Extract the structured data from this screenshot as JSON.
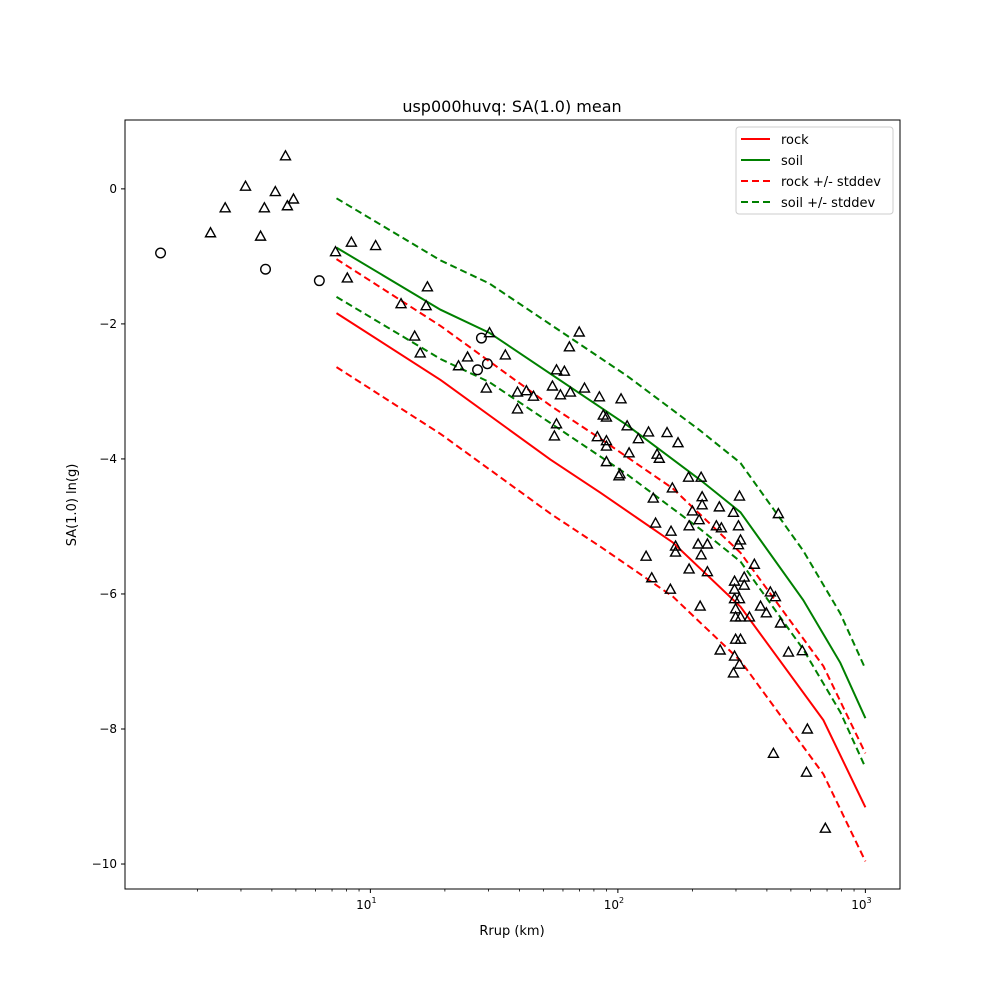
{
  "chart_data": {
    "type": "scatter",
    "title": "usp000huvq: SA(1.0) mean",
    "xlabel": "Rrup (km)",
    "ylabel": "SA(1.0) ln(g)",
    "xscale": "log",
    "xlim": [
      1.02,
      1380
    ],
    "ylim": [
      -10.37,
      1.02
    ],
    "grid": false,
    "legend_position": "top-right",
    "xticks": [
      {
        "value": 10,
        "base": "10",
        "exp": "1"
      },
      {
        "value": 100,
        "base": "10",
        "exp": "2"
      },
      {
        "value": 1000,
        "base": "10",
        "exp": "3"
      }
    ],
    "yticks": [
      {
        "value": 0,
        "label": "0"
      },
      {
        "value": -2,
        "label": "−2"
      },
      {
        "value": -4,
        "label": "−4"
      },
      {
        "value": -6,
        "label": "−6"
      },
      {
        "value": -8,
        "label": "−8"
      },
      {
        "value": -10,
        "label": "−10"
      }
    ],
    "colors": {
      "rock": "#ff0000",
      "soil": "#008000",
      "marker": "#000000"
    },
    "legend": [
      {
        "label": "rock",
        "series": "rock",
        "style": "solid"
      },
      {
        "label": "soil",
        "series": "soil",
        "style": "solid"
      },
      {
        "label": "rock +/- stddev",
        "series": "rock",
        "style": "dashed"
      },
      {
        "label": "soil +/- stddev",
        "series": "soil",
        "style": "dashed"
      }
    ],
    "lines": {
      "rock": {
        "stddev": 0.8,
        "x": [
          7.3,
          19.2,
          53.4,
          85,
          167,
          313,
          677,
          1000
        ],
        "y": [
          -1.84,
          -2.83,
          -4.01,
          -4.5,
          -5.24,
          -6.19,
          -7.87,
          -9.16
        ]
      },
      "soil": {
        "stddev": 0.73,
        "x": [
          7.3,
          19.2,
          30.2,
          109,
          215,
          313,
          561,
          792,
          1000
        ],
        "y": [
          -0.87,
          -1.79,
          -2.13,
          -3.5,
          -4.31,
          -4.79,
          -6.09,
          -7.02,
          -7.84
        ]
      }
    },
    "circles": [
      [
        1.42,
        -0.95
      ],
      [
        3.77,
        -1.19
      ],
      [
        6.22,
        -1.36
      ],
      [
        28.1,
        -2.21
      ],
      [
        29.7,
        -2.59
      ],
      [
        27.1,
        -2.68
      ]
    ],
    "triangles": [
      [
        4.54,
        0.49
      ],
      [
        3.13,
        0.04
      ],
      [
        4.13,
        -0.04
      ],
      [
        4.89,
        -0.15
      ],
      [
        2.59,
        -0.28
      ],
      [
        3.73,
        -0.28
      ],
      [
        4.62,
        -0.25
      ],
      [
        2.26,
        -0.65
      ],
      [
        3.6,
        -0.7
      ],
      [
        8.38,
        -0.79
      ],
      [
        10.5,
        -0.84
      ],
      [
        7.23,
        -0.93
      ],
      [
        8.07,
        -1.32
      ],
      [
        17.0,
        -1.45
      ],
      [
        13.3,
        -1.7
      ],
      [
        16.8,
        -1.73
      ],
      [
        15.1,
        -2.18
      ],
      [
        15.9,
        -2.43
      ],
      [
        22.7,
        -2.62
      ],
      [
        30.3,
        -2.13
      ],
      [
        69.8,
        -2.12
      ],
      [
        63.7,
        -2.34
      ],
      [
        24.7,
        -2.49
      ],
      [
        35.1,
        -2.46
      ],
      [
        56.5,
        -2.68
      ],
      [
        60.8,
        -2.7
      ],
      [
        29.4,
        -2.95
      ],
      [
        39.3,
        -3.01
      ],
      [
        42.7,
        -2.99
      ],
      [
        45.6,
        -3.07
      ],
      [
        39.3,
        -3.26
      ],
      [
        54.4,
        -2.92
      ],
      [
        58.6,
        -3.05
      ],
      [
        64.3,
        -3.01
      ],
      [
        73.3,
        -2.95
      ],
      [
        84.2,
        -3.08
      ],
      [
        103,
        -3.11
      ],
      [
        87.3,
        -3.35
      ],
      [
        89.9,
        -3.38
      ],
      [
        109,
        -3.51
      ],
      [
        56.5,
        -3.48
      ],
      [
        55.4,
        -3.66
      ],
      [
        82.6,
        -3.67
      ],
      [
        89.9,
        -3.73
      ],
      [
        89.9,
        -3.81
      ],
      [
        121,
        -3.7
      ],
      [
        133,
        -3.6
      ],
      [
        158,
        -3.61
      ],
      [
        175,
        -3.76
      ],
      [
        111,
        -3.91
      ],
      [
        144,
        -3.93
      ],
      [
        147,
        -3.99
      ],
      [
        89.9,
        -4.04
      ],
      [
        102,
        -4.22
      ],
      [
        101,
        -4.25
      ],
      [
        193,
        -4.27
      ],
      [
        217,
        -4.27
      ],
      [
        166,
        -4.43
      ],
      [
        139,
        -4.58
      ],
      [
        219,
        -4.56
      ],
      [
        310,
        -4.55
      ],
      [
        445,
        -4.81
      ],
      [
        219,
        -4.68
      ],
      [
        257,
        -4.71
      ],
      [
        200,
        -4.77
      ],
      [
        293,
        -4.79
      ],
      [
        213,
        -4.9
      ],
      [
        142,
        -4.95
      ],
      [
        194,
        -4.99
      ],
      [
        250,
        -4.99
      ],
      [
        262,
        -5.02
      ],
      [
        307,
        -4.99
      ],
      [
        164,
        -5.07
      ],
      [
        313,
        -5.2
      ],
      [
        307,
        -5.27
      ],
      [
        171,
        -5.29
      ],
      [
        171,
        -5.38
      ],
      [
        211,
        -5.26
      ],
      [
        230,
        -5.26
      ],
      [
        217,
        -5.42
      ],
      [
        130,
        -5.44
      ],
      [
        356,
        -5.56
      ],
      [
        194,
        -5.63
      ],
      [
        230,
        -5.67
      ],
      [
        137,
        -5.76
      ],
      [
        324,
        -5.75
      ],
      [
        296,
        -5.81
      ],
      [
        296,
        -5.93
      ],
      [
        324,
        -5.87
      ],
      [
        163,
        -5.93
      ],
      [
        413,
        -5.97
      ],
      [
        433,
        -6.04
      ],
      [
        296,
        -6.07
      ],
      [
        310,
        -6.07
      ],
      [
        215,
        -6.18
      ],
      [
        377,
        -6.18
      ],
      [
        398,
        -6.28
      ],
      [
        299,
        -6.22
      ],
      [
        299,
        -6.34
      ],
      [
        313,
        -6.34
      ],
      [
        340,
        -6.34
      ],
      [
        454,
        -6.43
      ],
      [
        299,
        -6.67
      ],
      [
        313,
        -6.67
      ],
      [
        259,
        -6.83
      ],
      [
        489,
        -6.86
      ],
      [
        556,
        -6.84
      ],
      [
        296,
        -6.92
      ],
      [
        310,
        -7.04
      ],
      [
        293,
        -7.17
      ],
      [
        583,
        -8.0
      ],
      [
        425,
        -8.36
      ],
      [
        578,
        -8.64
      ],
      [
        689,
        -9.47
      ]
    ]
  }
}
